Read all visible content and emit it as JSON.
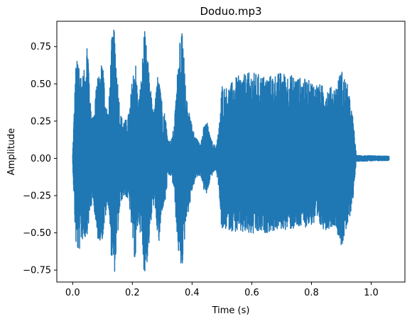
{
  "chart_data": {
    "type": "line",
    "title": "Doduo.mp3",
    "xlabel": "Time (s)",
    "ylabel": "Amplitude",
    "xlim": [
      -0.053,
      1.113
    ],
    "ylim": [
      -0.83,
      0.92
    ],
    "xticks": [
      0.0,
      0.2,
      0.4,
      0.6,
      0.8,
      1.0
    ],
    "xtick_labels": [
      "0.0",
      "0.2",
      "0.4",
      "0.6",
      "0.8",
      "1.0"
    ],
    "yticks": [
      -0.75,
      -0.5,
      -0.25,
      0.0,
      0.25,
      0.5,
      0.75
    ],
    "ytick_labels": [
      "−0.75",
      "−0.50",
      "−0.25",
      "0.00",
      "0.25",
      "0.50",
      "0.75"
    ],
    "grid": false,
    "color": "#1f77b4",
    "duration_s": 1.06,
    "series": [
      {
        "envelope": {
          "t": [
            0.0,
            0.01,
            0.02,
            0.03,
            0.04,
            0.05,
            0.06,
            0.07,
            0.08,
            0.09,
            0.1,
            0.11,
            0.12,
            0.13,
            0.14,
            0.15,
            0.16,
            0.17,
            0.18,
            0.19,
            0.2,
            0.21,
            0.22,
            0.23,
            0.24,
            0.25,
            0.26,
            0.27,
            0.28,
            0.29,
            0.3,
            0.31,
            0.32,
            0.33,
            0.34,
            0.35,
            0.36,
            0.37,
            0.38,
            0.39,
            0.4,
            0.41,
            0.42,
            0.43,
            0.44,
            0.45,
            0.46,
            0.47,
            0.48,
            0.49,
            0.5,
            0.51,
            0.52,
            0.55,
            0.6,
            0.65,
            0.7,
            0.75,
            0.8,
            0.85,
            0.88,
            0.9,
            0.92,
            0.93,
            0.94,
            0.945,
            0.95,
            1.06
          ],
          "max": [
            0.03,
            0.62,
            0.7,
            0.55,
            0.6,
            0.85,
            0.35,
            0.28,
            0.55,
            0.55,
            0.7,
            0.4,
            0.3,
            0.8,
            0.88,
            0.55,
            0.3,
            0.26,
            0.26,
            0.32,
            0.55,
            0.68,
            0.38,
            0.55,
            0.88,
            0.7,
            0.5,
            0.3,
            0.45,
            0.7,
            0.35,
            0.3,
            0.12,
            0.12,
            0.22,
            0.55,
            0.9,
            0.8,
            0.4,
            0.35,
            0.22,
            0.15,
            0.12,
            0.12,
            0.22,
            0.25,
            0.15,
            0.1,
            0.08,
            0.2,
            0.5,
            0.48,
            0.48,
            0.55,
            0.58,
            0.55,
            0.58,
            0.55,
            0.52,
            0.48,
            0.48,
            0.6,
            0.5,
            0.38,
            0.26,
            0.14,
            0.02,
            0.015
          ],
          "min": [
            -0.03,
            -0.58,
            -0.65,
            -0.55,
            -0.55,
            -0.5,
            -0.35,
            -0.28,
            -0.55,
            -0.55,
            -0.55,
            -0.4,
            -0.3,
            -0.68,
            -0.78,
            -0.55,
            -0.3,
            -0.26,
            -0.26,
            -0.32,
            -0.55,
            -0.72,
            -0.4,
            -0.55,
            -0.78,
            -0.7,
            -0.5,
            -0.3,
            -0.45,
            -0.6,
            -0.35,
            -0.3,
            -0.12,
            -0.12,
            -0.22,
            -0.55,
            -0.75,
            -0.7,
            -0.4,
            -0.35,
            -0.22,
            -0.15,
            -0.12,
            -0.12,
            -0.22,
            -0.25,
            -0.15,
            -0.1,
            -0.08,
            -0.2,
            -0.52,
            -0.48,
            -0.48,
            -0.5,
            -0.52,
            -0.5,
            -0.48,
            -0.48,
            -0.45,
            -0.48,
            -0.45,
            -0.6,
            -0.48,
            -0.38,
            -0.26,
            -0.14,
            -0.02,
            -0.015
          ]
        }
      }
    ]
  }
}
